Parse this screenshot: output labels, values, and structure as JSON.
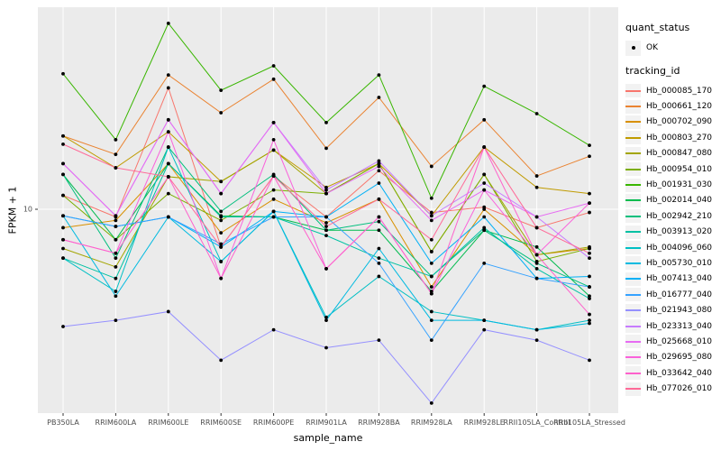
{
  "figure": {
    "y_axis_title": "FPKM + 1",
    "x_axis_title": "sample_name",
    "y_tick_label": "10"
  },
  "legend": {
    "quant_title": "quant_status",
    "quant_items": [
      {
        "label": "OK"
      }
    ],
    "tracking_title": "tracking_id"
  },
  "chart_data": {
    "type": "line",
    "title": "",
    "xlabel": "sample_name",
    "ylabel": "FPKM + 1",
    "y_scale": "log10",
    "y_ticks": [
      10
    ],
    "ylim": [
      1.4,
      70
    ],
    "grid": "major-white-on-gray",
    "panel_bg": "#EBEBEB",
    "grid_color": "#FFFFFF",
    "point_color": "#000000",
    "quant_status_marker": "OK",
    "legend_position": "right",
    "categories": [
      "PB350LA",
      "RRIM600LA",
      "RRIM600LE",
      "RRIM600SE",
      "RRIM600PE",
      "RRIM901LA",
      "RRIM928BA",
      "RRIM928LA",
      "RRIM928LE",
      "RRII105LA_Control",
      "RRII105LA_Stressed"
    ],
    "series": [
      {
        "name": "Hb_000085_170",
        "color": "#F8766D",
        "values": [
          11.4,
          9.3,
          31.5,
          7.0,
          13.7,
          9.3,
          14.4,
          9.7,
          10.2,
          8.4,
          9.7
        ]
      },
      {
        "name": "Hb_000661_120",
        "color": "#EA8331",
        "values": [
          20.0,
          16.8,
          35.6,
          24.9,
          34.2,
          17.8,
          28.8,
          15.0,
          23.3,
          13.7,
          16.5
        ]
      },
      {
        "name": "Hb_000702_090",
        "color": "#D89000",
        "values": [
          8.4,
          9.0,
          15.4,
          8.0,
          11.0,
          8.8,
          11.0,
          4.8,
          10.0,
          6.5,
          6.9
        ]
      },
      {
        "name": "Hb_000803_270",
        "color": "#C09B00",
        "values": [
          20.0,
          14.8,
          20.8,
          13.0,
          17.5,
          12.3,
          15.4,
          9.4,
          18.0,
          12.3,
          11.6
        ]
      },
      {
        "name": "Hb_000847_080",
        "color": "#A3A500",
        "values": [
          6.9,
          5.8,
          13.6,
          13.0,
          17.5,
          11.6,
          15.4,
          6.7,
          13.9,
          6.5,
          7.0
        ]
      },
      {
        "name": "Hb_000954_010",
        "color": "#7CAE00",
        "values": [
          11.4,
          7.5,
          11.6,
          9.0,
          12.0,
          11.6,
          15.4,
          6.7,
          13.9,
          6.1,
          6.9
        ]
      },
      {
        "name": "Hb_001931_030",
        "color": "#39B600",
        "values": [
          36.0,
          19.3,
          58.0,
          30.8,
          38.8,
          22.7,
          35.6,
          11.1,
          32.0,
          24.7,
          18.3
        ]
      },
      {
        "name": "Hb_002014_040",
        "color": "#00BB4E",
        "values": [
          13.9,
          7.5,
          15.4,
          9.4,
          9.3,
          8.2,
          8.2,
          4.6,
          8.2,
          7.0,
          4.4
        ]
      },
      {
        "name": "Hb_002942_210",
        "color": "#00BF7D",
        "values": [
          13.9,
          6.3,
          18.0,
          9.8,
          13.9,
          8.2,
          8.9,
          5.3,
          8.2,
          6.0,
          4.8
        ]
      },
      {
        "name": "Hb_003913_020",
        "color": "#00C1A3",
        "values": [
          6.3,
          5.2,
          15.4,
          9.3,
          9.3,
          7.8,
          6.3,
          5.3,
          8.4,
          5.7,
          4.3
        ]
      },
      {
        "name": "Hb_004096_060",
        "color": "#00BFC4",
        "values": [
          6.3,
          4.6,
          18.0,
          6.1,
          9.8,
          3.6,
          5.3,
          3.8,
          3.5,
          3.2,
          3.5
        ]
      },
      {
        "name": "Hb_005730_010",
        "color": "#00BAE0",
        "values": [
          9.4,
          4.4,
          9.3,
          6.1,
          9.8,
          3.5,
          6.9,
          3.5,
          3.5,
          3.2,
          3.4
        ]
      },
      {
        "name": "Hb_007413_040",
        "color": "#00B0F6",
        "values": [
          9.4,
          8.5,
          9.3,
          7.0,
          9.8,
          9.3,
          12.8,
          6.0,
          9.3,
          5.2,
          5.3
        ]
      },
      {
        "name": "Hb_016777_040",
        "color": "#35A2FF",
        "values": [
          9.4,
          8.5,
          9.3,
          7.2,
          9.3,
          9.3,
          6.0,
          2.9,
          6.0,
          5.2,
          4.8
        ]
      },
      {
        "name": "Hb_021943_080",
        "color": "#9590FF",
        "values": [
          3.3,
          3.5,
          3.8,
          2.4,
          3.2,
          2.7,
          2.9,
          1.6,
          3.2,
          2.9,
          2.4
        ]
      },
      {
        "name": "Hb_023313_040",
        "color": "#C77CFF",
        "values": [
          15.4,
          9.4,
          23.3,
          11.6,
          22.7,
          12.0,
          15.8,
          9.4,
          12.8,
          9.3,
          6.3
        ]
      },
      {
        "name": "Hb_025668_010",
        "color": "#E76BF3",
        "values": [
          15.4,
          9.4,
          23.3,
          11.6,
          22.7,
          11.6,
          15.0,
          9.0,
          12.0,
          9.3,
          10.6
        ]
      },
      {
        "name": "Hb_029695_080",
        "color": "#FA62DB",
        "values": [
          7.5,
          6.6,
          20.8,
          5.2,
          19.3,
          5.7,
          9.3,
          4.5,
          12.0,
          6.5,
          10.6
        ]
      },
      {
        "name": "Hb_033642_040",
        "color": "#FF61CC",
        "values": [
          7.5,
          6.6,
          13.6,
          5.2,
          13.7,
          5.7,
          9.3,
          4.5,
          18.0,
          6.5,
          3.7
        ]
      },
      {
        "name": "Hb_077026_010",
        "color": "#FF6A98",
        "values": [
          18.5,
          14.8,
          13.6,
          7.0,
          13.7,
          8.5,
          11.0,
          7.5,
          18.0,
          8.4,
          6.6
        ]
      }
    ]
  }
}
